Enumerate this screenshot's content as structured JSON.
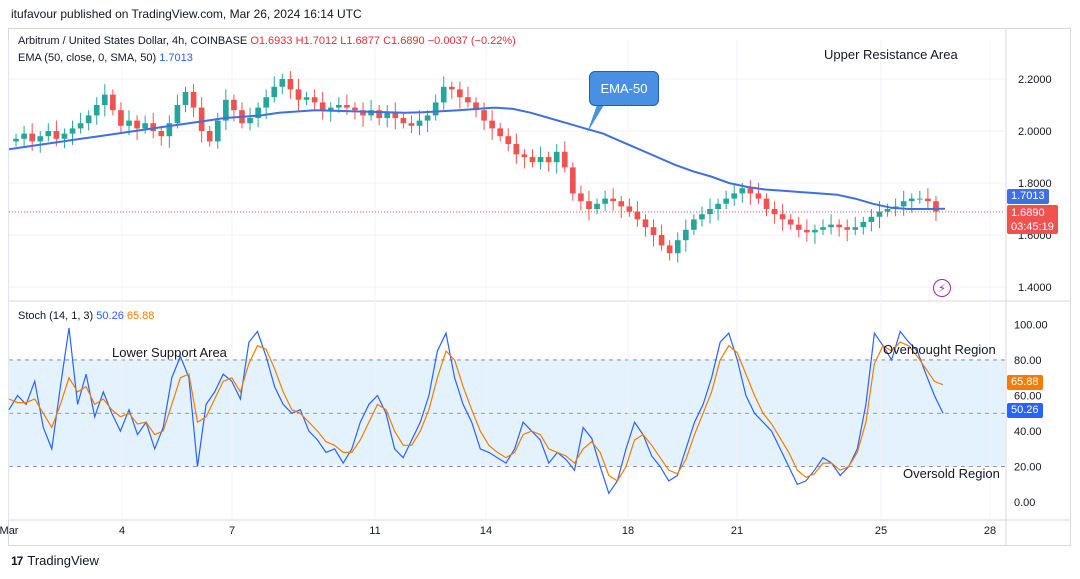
{
  "publisher": "itufavour published on TradingView.com, Mar 26, 2024 16:14 UTC",
  "legend": {
    "symbol": "Arbitrum / United States Dollar, 4h, COINBASE",
    "open": "O1.6933",
    "high": "H1.7012",
    "low": "L1.6877",
    "close": "C1.6890",
    "change": "−0.0037 (−0.22%)",
    "ema_label": "EMA (50, close, 0, SMA, 50)",
    "ema_value": "1.7013",
    "stoch_label": "Stoch (14, 1, 3)",
    "stoch_k": "50.26",
    "stoch_d": "65.88"
  },
  "annotations": {
    "upper": "Upper Resistance Area",
    "lower": "Lower Support Area",
    "overbought": "Overbought Region",
    "oversold": "Oversold Region",
    "ema_callout": "EMA-50"
  },
  "price_badges": {
    "ema": "1.7013",
    "last": "1.6890",
    "countdown": "03:45:19",
    "k": "50.26",
    "d": "65.88"
  },
  "footer": {
    "brand": "TradingView",
    "logo_text": "17"
  },
  "colors": {
    "up": "#26a69a",
    "down": "#ef5350",
    "ema": "#3f6fe0",
    "k": "#2962ff",
    "d": "#f57c00",
    "band": "#e3f2fd"
  },
  "chart_data": [
    {
      "type": "candlestick",
      "title": "",
      "ylim": [
        1.35,
        2.35
      ],
      "yticks": [
        "2.2000",
        "2.0000",
        "1.8000",
        "1.6000",
        "1.4000"
      ],
      "ytick_values": [
        2.2,
        2.0,
        1.8,
        1.6,
        1.4
      ],
      "xticks": [
        "Mar",
        "4",
        "7",
        "11",
        "14",
        "18",
        "21",
        "25",
        "28"
      ],
      "close_series": [
        1.97,
        1.99,
        1.96,
        1.98,
        2.0,
        1.97,
        1.99,
        2.01,
        2.03,
        2.06,
        2.1,
        2.14,
        2.08,
        2.02,
        2.04,
        2.01,
        2.03,
        2.0,
        1.98,
        2.03,
        2.1,
        2.15,
        2.09,
        2.0,
        1.96,
        2.04,
        2.12,
        2.08,
        2.03,
        2.05,
        2.09,
        2.13,
        2.17,
        2.2,
        2.16,
        2.12,
        2.13,
        2.11,
        2.08,
        2.09,
        2.1,
        2.09,
        2.08,
        2.06,
        2.08,
        2.05,
        2.07,
        2.05,
        2.03,
        2.02,
        2.04,
        2.06,
        2.11,
        2.17,
        2.16,
        2.13,
        2.11,
        2.08,
        2.04,
        2.01,
        1.98,
        1.95,
        1.91,
        1.9,
        1.88,
        1.9,
        1.88,
        1.92,
        1.86,
        1.76,
        1.73,
        1.7,
        1.72,
        1.74,
        1.73,
        1.71,
        1.69,
        1.66,
        1.63,
        1.6,
        1.56,
        1.53,
        1.58,
        1.62,
        1.66,
        1.68,
        1.7,
        1.72,
        1.74,
        1.76,
        1.78,
        1.76,
        1.74,
        1.7,
        1.68,
        1.66,
        1.64,
        1.62,
        1.61,
        1.62,
        1.63,
        1.64,
        1.63,
        1.62,
        1.63,
        1.65,
        1.67,
        1.69,
        1.7,
        1.71,
        1.73,
        1.74,
        1.74,
        1.73,
        1.69
      ],
      "ema50": [
        1.93,
        1.94,
        1.95,
        1.96,
        1.97,
        1.98,
        1.99,
        2.0,
        2.01,
        2.02,
        2.03,
        2.04,
        2.05,
        2.055,
        2.06,
        2.07,
        2.075,
        2.08,
        2.078,
        2.076,
        2.074,
        2.072,
        2.07,
        2.072,
        2.076,
        2.08,
        2.085,
        2.09,
        2.085,
        2.07,
        2.05,
        2.03,
        2.01,
        1.99,
        1.96,
        1.93,
        1.9,
        1.87,
        1.845,
        1.825,
        1.8,
        1.785,
        1.775,
        1.77,
        1.765,
        1.76,
        1.755,
        1.74,
        1.72,
        1.705,
        1.7,
        1.7,
        1.701
      ],
      "series": [
        {
          "name": "EMA (50, close, 0, SMA, 50)",
          "last": 1.7013
        },
        {
          "name": "Close",
          "last": 1.689
        }
      ]
    },
    {
      "type": "line",
      "title": "",
      "ylim": [
        -10,
        112
      ],
      "yticks": [
        "100.00",
        "80.00",
        "60.00",
        "40.00",
        "20.00",
        "0.00"
      ],
      "ytick_values": [
        100,
        80,
        60,
        40,
        20,
        0
      ],
      "bands": [
        20,
        50,
        80
      ],
      "series": [
        {
          "name": "K",
          "values": [
            52,
            60,
            55,
            68,
            42,
            30,
            65,
            98,
            55,
            72,
            48,
            62,
            50,
            40,
            52,
            38,
            45,
            30,
            42,
            70,
            82,
            70,
            20,
            55,
            62,
            72,
            68,
            58,
            90,
            96,
            82,
            65,
            55,
            50,
            52,
            40,
            35,
            28,
            30,
            22,
            30,
            45,
            55,
            60,
            50,
            30,
            25,
            35,
            45,
            60,
            85,
            95,
            70,
            55,
            45,
            30,
            28,
            25,
            22,
            30,
            45,
            40,
            35,
            22,
            28,
            24,
            18,
            42,
            36,
            20,
            5,
            12,
            30,
            45,
            38,
            26,
            20,
            12,
            15,
            30,
            45,
            55,
            70,
            90,
            95,
            80,
            60,
            50,
            45,
            40,
            30,
            20,
            10,
            12,
            18,
            25,
            22,
            15,
            20,
            30,
            55,
            95,
            88,
            80,
            96,
            90,
            85,
            72,
            60,
            50
          ]
        },
        {
          "name": "D",
          "values": [
            58,
            56,
            56,
            58,
            50,
            42,
            55,
            70,
            62,
            65,
            55,
            58,
            52,
            48,
            50,
            44,
            45,
            38,
            40,
            55,
            70,
            72,
            45,
            48,
            58,
            68,
            70,
            62,
            78,
            88,
            86,
            75,
            62,
            52,
            50,
            45,
            40,
            34,
            32,
            28,
            28,
            35,
            45,
            55,
            52,
            40,
            32,
            32,
            40,
            52,
            70,
            85,
            80,
            65,
            52,
            40,
            32,
            28,
            25,
            28,
            38,
            40,
            38,
            30,
            28,
            26,
            22,
            30,
            34,
            28,
            15,
            12,
            20,
            35,
            38,
            32,
            25,
            18,
            16,
            24,
            38,
            50,
            62,
            80,
            88,
            84,
            72,
            60,
            50,
            44,
            36,
            28,
            18,
            14,
            16,
            22,
            22,
            18,
            20,
            28,
            45,
            78,
            88,
            85,
            90,
            88,
            82,
            75,
            68,
            66
          ]
        }
      ]
    }
  ]
}
